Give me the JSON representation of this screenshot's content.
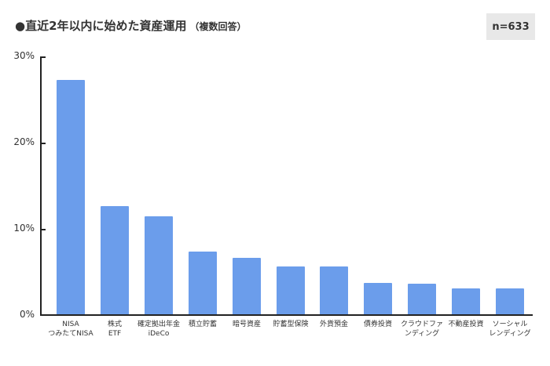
{
  "header": {
    "title": "●直近2年以内に始めた資産運用",
    "subtitle": "（複数回答）",
    "sample_size": "n=633"
  },
  "axis": {
    "y_ticks": [
      "30%",
      "20%",
      "10%",
      "0%"
    ]
  },
  "colors": {
    "bar": "#6b9deb",
    "badge_bg": "#e8e8e8"
  },
  "categories": [
    {
      "line1": "NISA",
      "line2": "つみたてNISA"
    },
    {
      "line1": "株式",
      "line2": "ETF"
    },
    {
      "line1": "確定拠出年金",
      "line2": "iDeCo"
    },
    {
      "line1": "積立貯蓄",
      "line2": ""
    },
    {
      "line1": "暗号資産",
      "line2": ""
    },
    {
      "line1": "貯蓄型保険",
      "line2": ""
    },
    {
      "line1": "外貨預金",
      "line2": ""
    },
    {
      "line1": "債券投資",
      "line2": ""
    },
    {
      "line1": "クラウドファ",
      "line2": "ンディング"
    },
    {
      "line1": "不動産投資",
      "line2": ""
    },
    {
      "line1": "ソーシャル",
      "line2": "レンディング"
    }
  ],
  "chart_data": {
    "type": "bar",
    "title": "●直近2年以内に始めた資産運用（複数回答）",
    "annotation": "n=633",
    "categories": [
      "NISA つみたてNISA",
      "株式 ETF",
      "確定拠出年金 iDeCo",
      "積立貯蓄",
      "暗号資産",
      "貯蓄型保険",
      "外貨預金",
      "債券投資",
      "クラウドファンディング",
      "不動産投資",
      "ソーシャルレンディング"
    ],
    "values": [
      27.2,
      12.5,
      11.4,
      7.3,
      6.5,
      5.5,
      5.5,
      3.6,
      3.5,
      3.0,
      3.0
    ],
    "xlabel": "",
    "ylabel": "",
    "ylim": [
      0,
      30
    ],
    "yticks": [
      "0%",
      "10%",
      "20%",
      "30%"
    ],
    "grid": false,
    "legend": "none"
  }
}
